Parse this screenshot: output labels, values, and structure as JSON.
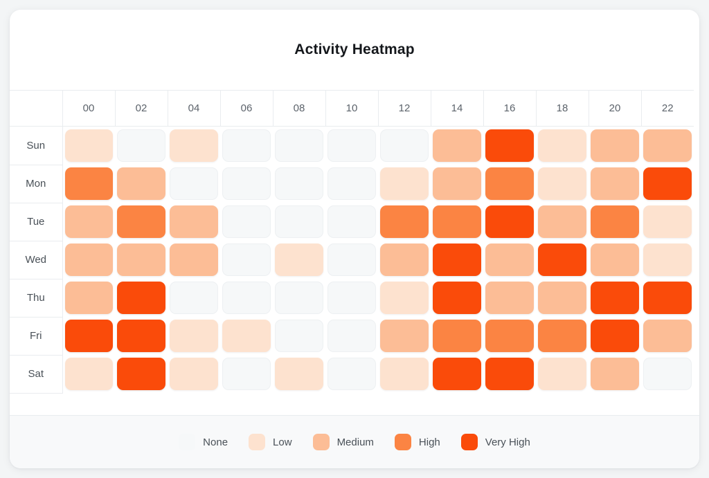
{
  "chart_data": {
    "type": "heatmap",
    "title": "Activity Heatmap",
    "x_categories": [
      "00",
      "02",
      "04",
      "06",
      "08",
      "10",
      "12",
      "14",
      "16",
      "18",
      "20",
      "22"
    ],
    "y_categories": [
      "Sun",
      "Mon",
      "Tue",
      "Wed",
      "Thu",
      "Fri",
      "Sat"
    ],
    "legend": {
      "position": "bottom",
      "levels": [
        {
          "label": "None",
          "value": 0,
          "color": "#f6f8f9"
        },
        {
          "label": "Low",
          "value": 1,
          "color": "#fde2cf"
        },
        {
          "label": "Medium",
          "value": 2,
          "color": "#fcbd96"
        },
        {
          "label": "High",
          "value": 3,
          "color": "#fb8443"
        },
        {
          "label": "Very High",
          "value": 4,
          "color": "#fa4b0a"
        }
      ]
    },
    "values": [
      [
        1,
        0,
        1,
        0,
        0,
        0,
        0,
        2,
        4,
        1,
        2,
        2
      ],
      [
        3,
        2,
        0,
        0,
        0,
        0,
        1,
        2,
        3,
        1,
        2,
        4
      ],
      [
        2,
        3,
        2,
        0,
        0,
        0,
        3,
        3,
        4,
        2,
        3,
        1
      ],
      [
        2,
        2,
        2,
        0,
        1,
        0,
        2,
        4,
        2,
        4,
        2,
        1
      ],
      [
        2,
        4,
        0,
        0,
        0,
        0,
        1,
        4,
        2,
        2,
        4,
        4
      ],
      [
        4,
        4,
        1,
        1,
        0,
        0,
        2,
        3,
        3,
        3,
        4,
        2
      ],
      [
        1,
        4,
        1,
        0,
        1,
        0,
        1,
        4,
        4,
        1,
        2,
        0
      ]
    ]
  }
}
